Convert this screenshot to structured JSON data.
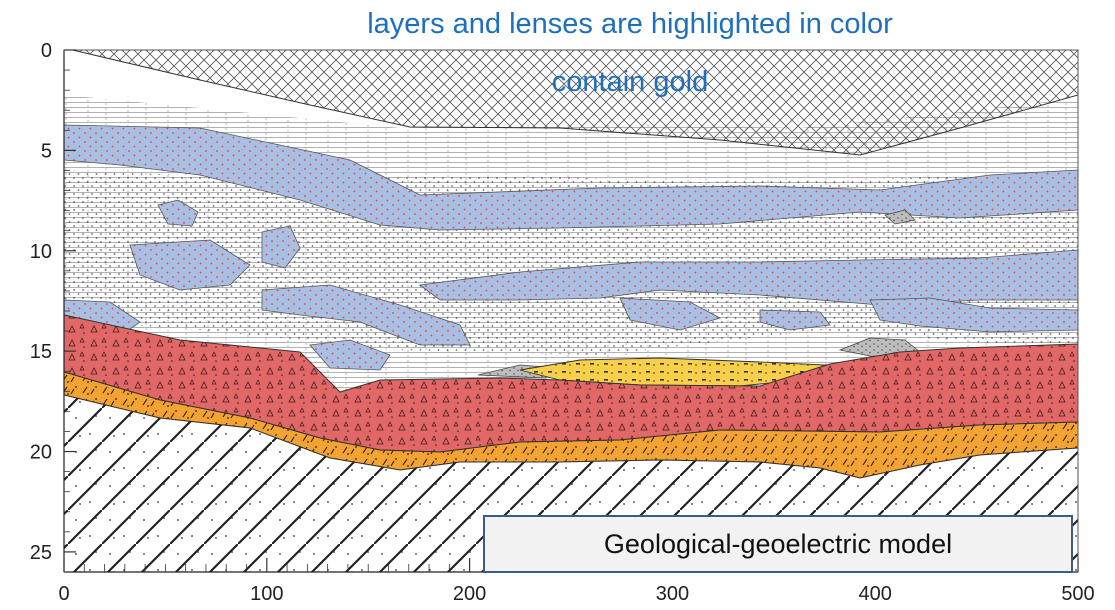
{
  "title_lines": [
    "layers and lenses are highlighted in color",
    "contain gold"
  ],
  "model_label": "Geological-geoelectric model",
  "colors": {
    "gold_lens": "#a9c0e4",
    "gold_dots": "#e0453a",
    "red_layer": "#e26868",
    "orange_layer": "#f3a332",
    "yellow_lens": "#f7cf4a",
    "gray_lens": "#bdbdbd",
    "title": "#1f6fbf",
    "frame_border": "#3b5a8a"
  },
  "axes": {
    "x_ticks": [
      0,
      100,
      200,
      300,
      400,
      500
    ],
    "x_range": [
      0,
      500
    ],
    "y_ticks": [
      0,
      5,
      10,
      15,
      20,
      25
    ],
    "y_range": [
      0,
      26
    ],
    "y_inverted": true
  }
}
